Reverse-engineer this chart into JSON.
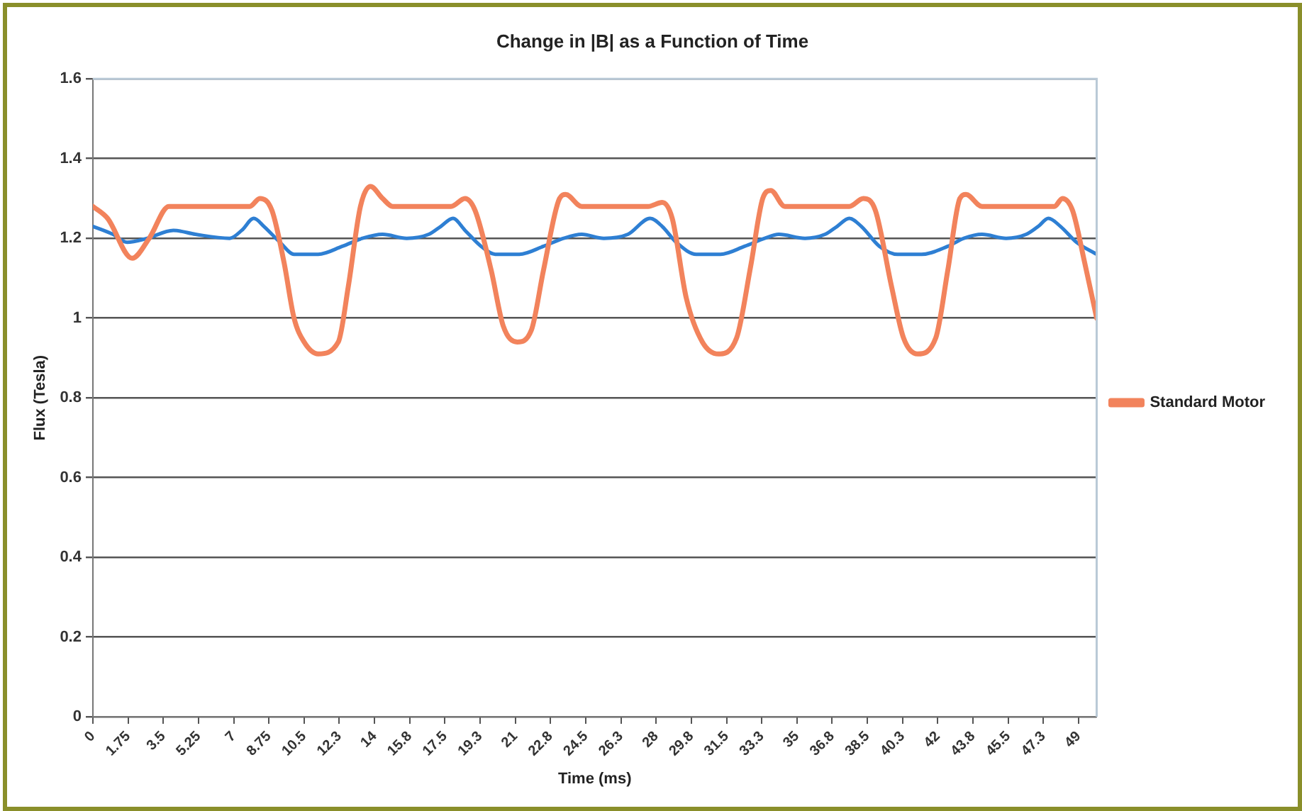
{
  "chart_data": {
    "type": "line",
    "title": "Change in |B| as a Function of Time",
    "xlabel": "Time (ms)",
    "ylabel": "Flux (Tesla)",
    "xlim": [
      0,
      49.9
    ],
    "xticks": [
      0,
      1.75,
      3.5,
      5.25,
      7,
      8.75,
      10.5,
      {
        "value": 12.25,
        "label": "12.3"
      },
      14,
      {
        "value": 15.75,
        "label": "15.8"
      },
      17.5,
      {
        "value": 19.25,
        "label": "19.3"
      },
      21,
      {
        "value": 22.75,
        "label": "22.8"
      },
      24.5,
      {
        "value": 26.25,
        "label": "26.3"
      },
      28,
      {
        "value": 29.75,
        "label": "29.8"
      },
      31.5,
      {
        "value": 33.25,
        "label": "33.3"
      },
      35,
      {
        "value": 36.75,
        "label": "36.8"
      },
      38.5,
      {
        "value": 40.25,
        "label": "40.3"
      },
      42,
      {
        "value": 43.75,
        "label": "43.8"
      },
      45.5,
      {
        "value": 47.25,
        "label": "47.3"
      },
      49
    ],
    "ylim": [
      0,
      1.6
    ],
    "yticks": [
      0,
      0.2,
      0.4,
      0.6,
      0.8,
      1,
      1.2,
      1.4,
      1.6
    ],
    "grid": "y",
    "legend": "right",
    "marker": "none",
    "line_style": "solid",
    "series": [
      {
        "name": "Standard Motor",
        "color": "#f2835c",
        "x": [
          0,
          0.73,
          1.95,
          2.8,
          3.78,
          5.1,
          7.8,
          8.3,
          8.9,
          9.5,
          10.0,
          10.5,
          11.2,
          12.2,
          12.7,
          13.3,
          13.8,
          14.4,
          14.9,
          17.8,
          18.5,
          19.0,
          19.8,
          20.4,
          21.1,
          21.8,
          22.4,
          23.2,
          23.5,
          24.3,
          27.6,
          28.3,
          28.8,
          29.5,
          30.3,
          31.1,
          32.0,
          32.7,
          33.3,
          33.7,
          34.4,
          37.6,
          38.3,
          38.9,
          39.7,
          40.3,
          41.0,
          41.9,
          42.5,
          43.1,
          43.4,
          44.2,
          47.8,
          48.2,
          48.7,
          49.3,
          49.9
        ],
        "values": [
          1.28,
          1.25,
          1.15,
          1.2,
          1.28,
          1.28,
          1.28,
          1.3,
          1.27,
          1.14,
          1.0,
          0.94,
          0.91,
          0.94,
          1.08,
          1.28,
          1.33,
          1.3,
          1.28,
          1.28,
          1.3,
          1.27,
          1.12,
          0.98,
          0.94,
          0.97,
          1.12,
          1.3,
          1.31,
          1.28,
          1.28,
          1.29,
          1.25,
          1.05,
          0.94,
          0.91,
          0.95,
          1.13,
          1.3,
          1.32,
          1.28,
          1.28,
          1.3,
          1.27,
          1.08,
          0.95,
          0.91,
          0.95,
          1.12,
          1.3,
          1.31,
          1.28,
          1.28,
          1.3,
          1.27,
          1.14,
          1.0
        ]
      },
      {
        "color": "#2e7fd3",
        "x": [
          0,
          1.0,
          1.7,
          2.7,
          4.0,
          5.1,
          6.8,
          7.4,
          8.0,
          8.5,
          9.3,
          10.0,
          11.2,
          12.4,
          13.4,
          14.4,
          15.6,
          16.7,
          17.3,
          17.9,
          18.5,
          19.3,
          20.0,
          21.2,
          22.4,
          23.4,
          24.3,
          25.4,
          26.6,
          27.7,
          28.3,
          29.0,
          30.0,
          31.2,
          32.4,
          33.4,
          34.1,
          35.4,
          36.4,
          37.0,
          37.6,
          38.2,
          39.1,
          40.0,
          41.2,
          42.5,
          43.3,
          44.2,
          45.4,
          46.4,
          47.0,
          47.5,
          48.1,
          48.9,
          49.9
        ],
        "values": [
          1.23,
          1.21,
          1.19,
          1.2,
          1.22,
          1.21,
          1.2,
          1.22,
          1.25,
          1.23,
          1.19,
          1.16,
          1.16,
          1.18,
          1.2,
          1.21,
          1.2,
          1.21,
          1.23,
          1.25,
          1.22,
          1.18,
          1.16,
          1.16,
          1.18,
          1.2,
          1.21,
          1.2,
          1.21,
          1.25,
          1.23,
          1.19,
          1.16,
          1.16,
          1.18,
          1.2,
          1.21,
          1.2,
          1.21,
          1.23,
          1.25,
          1.23,
          1.18,
          1.16,
          1.16,
          1.18,
          1.2,
          1.21,
          1.2,
          1.21,
          1.23,
          1.25,
          1.23,
          1.19,
          1.16
        ]
      }
    ]
  }
}
